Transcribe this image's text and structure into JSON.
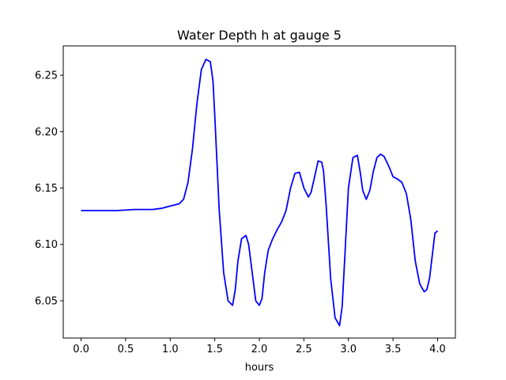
{
  "chart_data": {
    "type": "line",
    "title": "Water Depth h at gauge 5",
    "xlabel": "hours",
    "ylabel": "",
    "xlim": [
      -0.2,
      4.2
    ],
    "ylim": [
      6.017,
      6.276
    ],
    "xticks": [
      0.0,
      0.5,
      1.0,
      1.5,
      2.0,
      2.5,
      3.0,
      3.5,
      4.0
    ],
    "xtick_labels": [
      "0.0",
      "0.5",
      "1.0",
      "1.5",
      "2.0",
      "2.5",
      "3.0",
      "3.5",
      "4.0"
    ],
    "yticks": [
      6.05,
      6.1,
      6.15,
      6.2,
      6.25
    ],
    "ytick_labels": [
      "6.05",
      "6.10",
      "6.15",
      "6.20",
      "6.25"
    ],
    "grid": false,
    "series": [
      {
        "color": "#0000ff",
        "x": [
          0.0,
          0.2,
          0.4,
          0.6,
          0.8,
          0.9,
          1.0,
          1.1,
          1.15,
          1.2,
          1.25,
          1.3,
          1.35,
          1.4,
          1.45,
          1.48,
          1.5,
          1.55,
          1.6,
          1.65,
          1.7,
          1.73,
          1.76,
          1.8,
          1.85,
          1.88,
          1.92,
          1.96,
          2.0,
          2.03,
          2.06,
          2.1,
          2.15,
          2.2,
          2.25,
          2.3,
          2.35,
          2.4,
          2.45,
          2.5,
          2.55,
          2.58,
          2.62,
          2.66,
          2.7,
          2.72,
          2.75,
          2.8,
          2.85,
          2.9,
          2.93,
          2.96,
          3.0,
          3.05,
          3.1,
          3.13,
          3.16,
          3.2,
          3.24,
          3.28,
          3.32,
          3.36,
          3.4,
          3.43,
          3.46,
          3.5,
          3.55,
          3.6,
          3.65,
          3.7,
          3.75,
          3.8,
          3.85,
          3.88,
          3.91,
          3.94,
          3.97,
          4.0
        ],
        "y": [
          6.13,
          6.13,
          6.13,
          6.131,
          6.131,
          6.132,
          6.134,
          6.136,
          6.14,
          6.155,
          6.185,
          6.225,
          6.255,
          6.264,
          6.262,
          6.245,
          6.215,
          6.13,
          6.075,
          6.05,
          6.046,
          6.06,
          6.085,
          6.105,
          6.108,
          6.1,
          6.075,
          6.05,
          6.046,
          6.052,
          6.075,
          6.095,
          6.105,
          6.113,
          6.12,
          6.13,
          6.15,
          6.163,
          6.164,
          6.15,
          6.142,
          6.146,
          6.16,
          6.174,
          6.173,
          6.165,
          6.135,
          6.07,
          6.035,
          6.028,
          6.045,
          6.09,
          6.15,
          6.177,
          6.179,
          6.165,
          6.148,
          6.14,
          6.148,
          6.165,
          6.177,
          6.18,
          6.178,
          6.173,
          6.168,
          6.16,
          6.158,
          6.155,
          6.145,
          6.122,
          6.085,
          6.065,
          6.058,
          6.06,
          6.07,
          6.09,
          6.11,
          6.112
        ]
      }
    ]
  }
}
